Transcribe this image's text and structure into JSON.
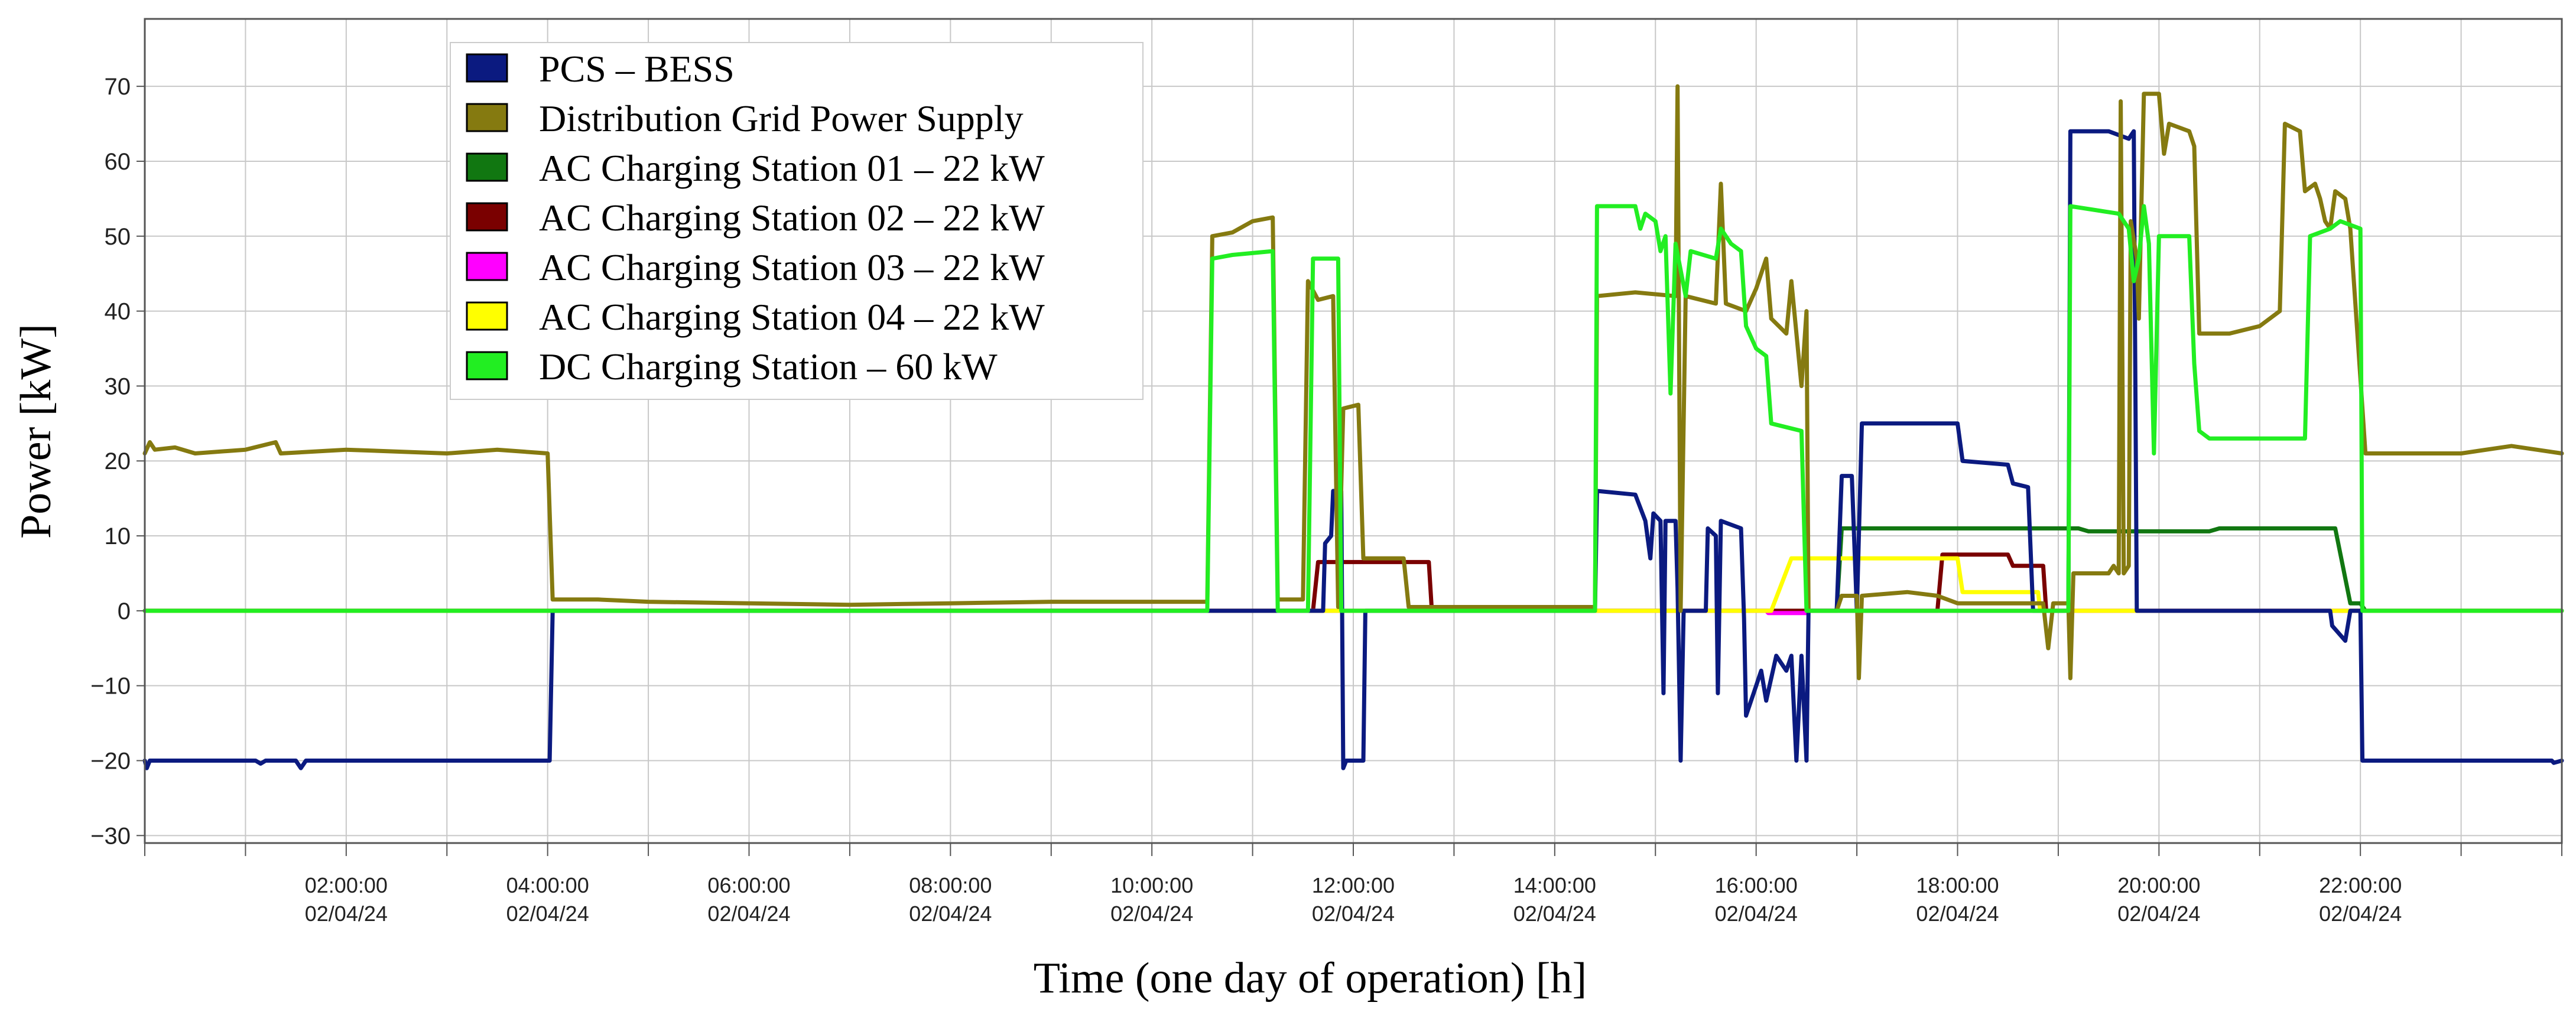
{
  "chart_data": {
    "type": "line",
    "title": "",
    "xlabel": "Time (one day of operation) [h]",
    "ylabel": "Power [kW]",
    "xlim": [
      0,
      24
    ],
    "ylim": [
      -31,
      79
    ],
    "grid": true,
    "legend_position": "top-left",
    "y_ticks": [
      70,
      60,
      50,
      40,
      30,
      20,
      10,
      0,
      -10,
      -20,
      -30
    ],
    "x_ticks": [
      {
        "time": "02:00:00",
        "date": "02/04/24",
        "hour": 2
      },
      {
        "time": "04:00:00",
        "date": "02/04/24",
        "hour": 4
      },
      {
        "time": "06:00:00",
        "date": "02/04/24",
        "hour": 6
      },
      {
        "time": "08:00:00",
        "date": "02/04/24",
        "hour": 8
      },
      {
        "time": "10:00:00",
        "date": "02/04/24",
        "hour": 10
      },
      {
        "time": "12:00:00",
        "date": "02/04/24",
        "hour": 12
      },
      {
        "time": "14:00:00",
        "date": "02/04/24",
        "hour": 14
      },
      {
        "time": "16:00:00",
        "date": "02/04/24",
        "hour": 16
      },
      {
        "time": "18:00:00",
        "date": "02/04/24",
        "hour": 18
      },
      {
        "time": "20:00:00",
        "date": "02/04/24",
        "hour": 20
      },
      {
        "time": "22:00:00",
        "date": "02/04/24",
        "hour": 22
      }
    ],
    "series": [
      {
        "name": "AC Charging Station 01 – 22 kW",
        "color": "#117711",
        "points": [
          [
            0,
            0
          ],
          [
            16.8,
            0
          ],
          [
            16.85,
            11
          ],
          [
            19.2,
            11
          ],
          [
            19.3,
            10.6
          ],
          [
            20.5,
            10.6
          ],
          [
            20.6,
            11
          ],
          [
            21.75,
            11
          ],
          [
            21.9,
            1
          ],
          [
            22,
            1
          ],
          [
            22.05,
            0
          ],
          [
            24,
            0
          ]
        ]
      },
      {
        "name": "AC Charging Station 02 – 22 kW",
        "color": "#7a0000",
        "points": [
          [
            0,
            0
          ],
          [
            11.6,
            0
          ],
          [
            11.65,
            6.5
          ],
          [
            12.75,
            6.5
          ],
          [
            12.78,
            0
          ],
          [
            17.8,
            0
          ],
          [
            17.85,
            7.5
          ],
          [
            18.5,
            7.5
          ],
          [
            18.55,
            6
          ],
          [
            18.85,
            6
          ],
          [
            18.88,
            0
          ],
          [
            24,
            0
          ]
        ]
      },
      {
        "name": "AC Charging Station 03 – 22 kW",
        "color": "#ff00ff",
        "points": [
          [
            0,
            0
          ],
          [
            16.1,
            0
          ],
          [
            16.12,
            -0.3
          ],
          [
            16.5,
            -0.3
          ],
          [
            16.52,
            0
          ],
          [
            24,
            0
          ]
        ]
      },
      {
        "name": "AC Charging Station 04 – 22 kW",
        "color": "#ffff00",
        "points": [
          [
            0,
            0
          ],
          [
            16.15,
            0
          ],
          [
            16.35,
            7
          ],
          [
            18.0,
            7
          ],
          [
            18.05,
            2.5
          ],
          [
            18.8,
            2.5
          ],
          [
            18.82,
            0
          ],
          [
            24,
            0
          ]
        ]
      },
      {
        "name": "PCS – BESS",
        "color": "#0b1a80",
        "points": [
          [
            0,
            -20
          ],
          [
            0.02,
            -21
          ],
          [
            0.05,
            -20
          ],
          [
            1.1,
            -20
          ],
          [
            1.15,
            -20.4
          ],
          [
            1.2,
            -20
          ],
          [
            1.5,
            -20
          ],
          [
            1.55,
            -21
          ],
          [
            1.6,
            -20
          ],
          [
            4.02,
            -20
          ],
          [
            4.05,
            0
          ],
          [
            11.7,
            0
          ],
          [
            11.72,
            9
          ],
          [
            11.78,
            10
          ],
          [
            11.8,
            16
          ],
          [
            11.88,
            16
          ],
          [
            11.9,
            -21
          ],
          [
            11.93,
            -20
          ],
          [
            12.1,
            -20
          ],
          [
            12.12,
            0
          ],
          [
            14.4,
            0
          ],
          [
            14.42,
            16
          ],
          [
            14.8,
            15.5
          ],
          [
            14.9,
            12
          ],
          [
            14.95,
            7
          ],
          [
            14.98,
            13
          ],
          [
            15.05,
            12
          ],
          [
            15.08,
            -11
          ],
          [
            15.1,
            12
          ],
          [
            15.2,
            12
          ],
          [
            15.22,
            3
          ],
          [
            15.25,
            -20
          ],
          [
            15.28,
            0
          ],
          [
            15.5,
            0
          ],
          [
            15.52,
            11
          ],
          [
            15.6,
            10
          ],
          [
            15.62,
            -11
          ],
          [
            15.65,
            12
          ],
          [
            15.85,
            11
          ],
          [
            15.88,
            -1
          ],
          [
            15.9,
            -14
          ],
          [
            16.0,
            -10
          ],
          [
            16.05,
            -8
          ],
          [
            16.1,
            -12
          ],
          [
            16.2,
            -6
          ],
          [
            16.3,
            -8
          ],
          [
            16.35,
            -6
          ],
          [
            16.4,
            -20
          ],
          [
            16.45,
            -6
          ],
          [
            16.5,
            -20
          ],
          [
            16.52,
            0
          ],
          [
            16.8,
            0
          ],
          [
            16.85,
            18
          ],
          [
            16.95,
            18
          ],
          [
            17.0,
            0
          ],
          [
            17.05,
            25
          ],
          [
            18.0,
            25
          ],
          [
            18.05,
            20
          ],
          [
            18.5,
            19.5
          ],
          [
            18.55,
            17
          ],
          [
            18.7,
            16.5
          ],
          [
            18.75,
            0
          ],
          [
            19.1,
            0
          ],
          [
            19.12,
            64
          ],
          [
            19.5,
            64
          ],
          [
            19.7,
            63
          ],
          [
            19.75,
            64
          ],
          [
            19.78,
            0
          ],
          [
            21.7,
            0
          ],
          [
            21.72,
            -2
          ],
          [
            21.85,
            -4
          ],
          [
            21.9,
            0
          ],
          [
            22.0,
            0
          ],
          [
            22.02,
            -20
          ],
          [
            23.9,
            -20
          ],
          [
            23.92,
            -20.3
          ],
          [
            24,
            -20
          ]
        ]
      },
      {
        "name": "Distribution Grid Power Supply",
        "color": "#857a10",
        "points": [
          [
            0,
            21
          ],
          [
            0.05,
            22.5
          ],
          [
            0.1,
            21.5
          ],
          [
            0.3,
            21.8
          ],
          [
            0.5,
            21
          ],
          [
            1.0,
            21.5
          ],
          [
            1.3,
            22.5
          ],
          [
            1.35,
            21
          ],
          [
            2.0,
            21.5
          ],
          [
            3.0,
            21
          ],
          [
            3.5,
            21.5
          ],
          [
            4.0,
            21
          ],
          [
            4.05,
            1.5
          ],
          [
            4.5,
            1.5
          ],
          [
            5.0,
            1.2
          ],
          [
            6.0,
            1.0
          ],
          [
            7.0,
            0.8
          ],
          [
            8.0,
            1.0
          ],
          [
            9.0,
            1.2
          ],
          [
            10.0,
            1.2
          ],
          [
            10.55,
            1.2
          ],
          [
            10.6,
            50
          ],
          [
            10.8,
            50.5
          ],
          [
            11.0,
            52
          ],
          [
            11.2,
            52.5
          ],
          [
            11.25,
            1.5
          ],
          [
            11.5,
            1.5
          ],
          [
            11.55,
            44
          ],
          [
            11.65,
            41.5
          ],
          [
            11.8,
            42
          ],
          [
            11.85,
            0.5
          ],
          [
            11.9,
            27
          ],
          [
            12.05,
            27.5
          ],
          [
            12.1,
            7
          ],
          [
            12.5,
            7
          ],
          [
            12.55,
            0.5
          ],
          [
            14.4,
            0.5
          ],
          [
            14.42,
            42
          ],
          [
            14.8,
            42.5
          ],
          [
            15.2,
            42
          ],
          [
            15.22,
            70
          ],
          [
            15.25,
            0
          ],
          [
            15.3,
            42
          ],
          [
            15.6,
            41
          ],
          [
            15.65,
            57
          ],
          [
            15.7,
            41
          ],
          [
            15.9,
            40
          ],
          [
            16.0,
            43
          ],
          [
            16.1,
            47
          ],
          [
            16.15,
            39
          ],
          [
            16.3,
            37
          ],
          [
            16.35,
            44
          ],
          [
            16.45,
            30
          ],
          [
            16.5,
            40
          ],
          [
            16.52,
            0
          ],
          [
            16.8,
            0
          ],
          [
            16.85,
            2
          ],
          [
            17.0,
            2
          ],
          [
            17.02,
            -9
          ],
          [
            17.05,
            2
          ],
          [
            17.5,
            2.5
          ],
          [
            17.8,
            2
          ],
          [
            18.0,
            1
          ],
          [
            18.5,
            1
          ],
          [
            18.85,
            1
          ],
          [
            18.9,
            -5
          ],
          [
            18.95,
            1
          ],
          [
            19.1,
            1
          ],
          [
            19.12,
            -9
          ],
          [
            19.15,
            5
          ],
          [
            19.5,
            5
          ],
          [
            19.55,
            6
          ],
          [
            19.6,
            5
          ],
          [
            19.62,
            68
          ],
          [
            19.65,
            5
          ],
          [
            19.7,
            6
          ],
          [
            19.72,
            52
          ],
          [
            19.78,
            47
          ],
          [
            19.8,
            39
          ],
          [
            19.85,
            69
          ],
          [
            20.0,
            69
          ],
          [
            20.05,
            61
          ],
          [
            20.1,
            65
          ],
          [
            20.3,
            64
          ],
          [
            20.35,
            62
          ],
          [
            20.4,
            37
          ],
          [
            20.7,
            37
          ],
          [
            21.0,
            38
          ],
          [
            21.2,
            40
          ],
          [
            21.25,
            65
          ],
          [
            21.4,
            64
          ],
          [
            21.45,
            56
          ],
          [
            21.55,
            57
          ],
          [
            21.6,
            55
          ],
          [
            21.65,
            52
          ],
          [
            21.7,
            51
          ],
          [
            21.75,
            56
          ],
          [
            21.85,
            55
          ],
          [
            21.9,
            51
          ],
          [
            22.0,
            31
          ],
          [
            22.05,
            21
          ],
          [
            23.0,
            21
          ],
          [
            23.5,
            22
          ],
          [
            24,
            21
          ]
        ]
      },
      {
        "name": "DC Charging Station – 60 kW",
        "color": "#22ee22",
        "points": [
          [
            0,
            0
          ],
          [
            10.55,
            0
          ],
          [
            10.6,
            47
          ],
          [
            10.8,
            47.5
          ],
          [
            11.2,
            48
          ],
          [
            11.25,
            0
          ],
          [
            11.55,
            0
          ],
          [
            11.6,
            47
          ],
          [
            11.85,
            47
          ],
          [
            11.88,
            0
          ],
          [
            14.4,
            0
          ],
          [
            14.42,
            54
          ],
          [
            14.8,
            54
          ],
          [
            14.85,
            51
          ],
          [
            14.9,
            53
          ],
          [
            15.0,
            52
          ],
          [
            15.05,
            48
          ],
          [
            15.1,
            50
          ],
          [
            15.15,
            29
          ],
          [
            15.2,
            49
          ],
          [
            15.3,
            42
          ],
          [
            15.35,
            48
          ],
          [
            15.6,
            47
          ],
          [
            15.65,
            51
          ],
          [
            15.75,
            49
          ],
          [
            15.85,
            48
          ],
          [
            15.9,
            38
          ],
          [
            16.0,
            35
          ],
          [
            16.1,
            34
          ],
          [
            16.15,
            25
          ],
          [
            16.45,
            24
          ],
          [
            16.5,
            0
          ],
          [
            19.1,
            0
          ],
          [
            19.12,
            54
          ],
          [
            19.6,
            53
          ],
          [
            19.7,
            51
          ],
          [
            19.75,
            44
          ],
          [
            19.8,
            47
          ],
          [
            19.85,
            54
          ],
          [
            19.9,
            49
          ],
          [
            19.95,
            21
          ],
          [
            20.0,
            50
          ],
          [
            20.3,
            50
          ],
          [
            20.35,
            33
          ],
          [
            20.4,
            24
          ],
          [
            20.5,
            23
          ],
          [
            21.45,
            23
          ],
          [
            21.5,
            50
          ],
          [
            21.7,
            51
          ],
          [
            21.8,
            52
          ],
          [
            22.0,
            51
          ],
          [
            22.02,
            0
          ],
          [
            24,
            0
          ]
        ]
      }
    ],
    "legend_order": [
      "PCS – BESS",
      "Distribution Grid Power Supply",
      "AC Charging Station 01 – 22 kW",
      "AC Charging Station 02 – 22 kW",
      "AC Charging Station 03 – 22 kW",
      "AC Charging Station 04 – 22 kW",
      "DC Charging Station – 60 kW"
    ]
  }
}
